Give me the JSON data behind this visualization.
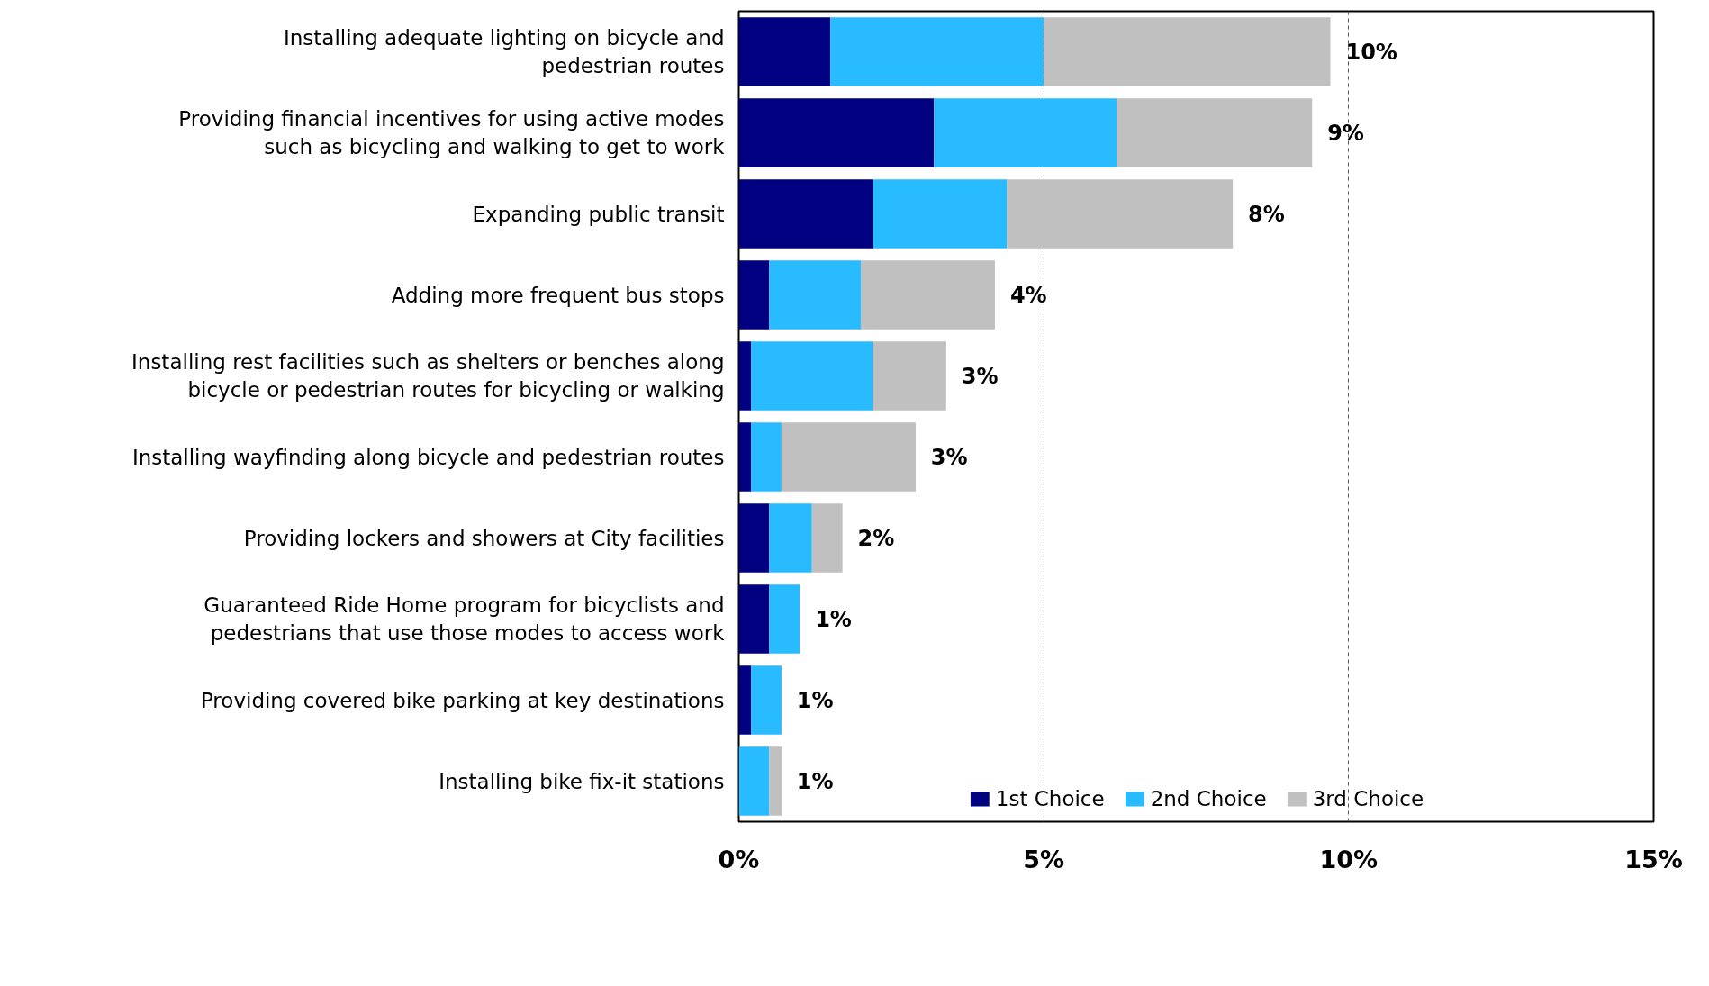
{
  "chart_data": {
    "type": "bar",
    "orientation": "horizontal",
    "stacked": true,
    "categories": [
      "Installing adequate lighting on bicycle and\npedestrian routes",
      "Providing financial incentives for using active modes\nsuch as bicycling and walking to get to work",
      "Expanding public transit",
      "Adding more frequent bus stops",
      "Installing rest facilities such as shelters or benches along\nbicycle or pedestrian routes for bicycling or walking",
      "Installing wayfinding along bicycle and pedestrian routes",
      "Providing lockers and showers at City facilities",
      "Guaranteed Ride Home program for bicyclists and\npedestrians that use those modes to access work",
      "Providing covered bike parking at key destinations",
      "Installing bike fix-it stations"
    ],
    "series": [
      {
        "name": "1st Choice",
        "color": "#000080",
        "values": [
          1.5,
          3.2,
          2.2,
          0.5,
          0.2,
          0.2,
          0.5,
          0.5,
          0.2,
          0
        ]
      },
      {
        "name": "2nd Choice",
        "color": "#29bbff",
        "values": [
          3.5,
          3.0,
          2.2,
          1.5,
          2.0,
          0.5,
          0.7,
          0.5,
          0.5,
          0.5
        ]
      },
      {
        "name": "3rd Choice",
        "color": "#c0c0c0",
        "values": [
          4.7,
          3.2,
          3.7,
          2.2,
          1.2,
          2.2,
          0.5,
          0,
          0,
          0.2
        ]
      }
    ],
    "totals": [
      "10%",
      "9%",
      "8%",
      "4%",
      "3%",
      "3%",
      "2%",
      "1%",
      "1%",
      "1%"
    ],
    "xlim": [
      0,
      15
    ],
    "xticks": [
      {
        "value": 0,
        "label": "0%"
      },
      {
        "value": 5,
        "label": "5%"
      },
      {
        "value": 10,
        "label": "10%"
      },
      {
        "value": 15,
        "label": "15%"
      }
    ],
    "grid": "x",
    "legend": "bottom"
  }
}
